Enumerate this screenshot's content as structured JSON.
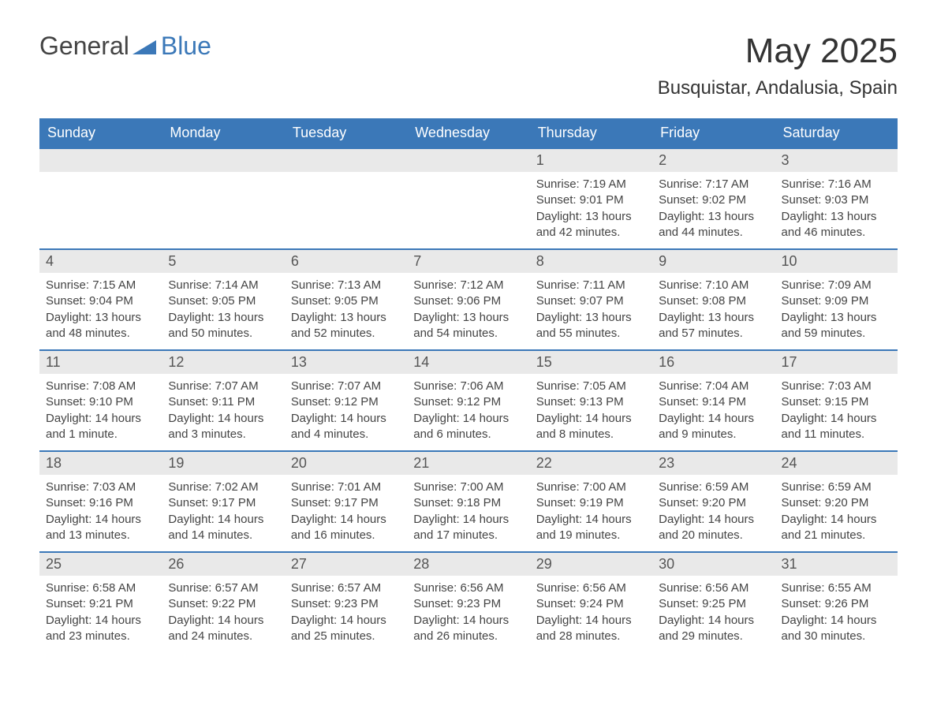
{
  "brand": {
    "general": "General",
    "blue": "Blue",
    "icon_color": "#3b78b8"
  },
  "header": {
    "month_title": "May 2025",
    "location": "Busquistar, Andalusia, Spain"
  },
  "colors": {
    "header_bg": "#3b78b8",
    "header_text": "#ffffff",
    "daynum_bg": "#e9e9e9",
    "text": "#444444",
    "row_border": "#3b78b8"
  },
  "weekdays": [
    "Sunday",
    "Monday",
    "Tuesday",
    "Wednesday",
    "Thursday",
    "Friday",
    "Saturday"
  ],
  "weeks": [
    [
      {
        "day": "",
        "sunrise": "",
        "sunset": "",
        "daylight": ""
      },
      {
        "day": "",
        "sunrise": "",
        "sunset": "",
        "daylight": ""
      },
      {
        "day": "",
        "sunrise": "",
        "sunset": "",
        "daylight": ""
      },
      {
        "day": "",
        "sunrise": "",
        "sunset": "",
        "daylight": ""
      },
      {
        "day": "1",
        "sunrise": "Sunrise: 7:19 AM",
        "sunset": "Sunset: 9:01 PM",
        "daylight": "Daylight: 13 hours and 42 minutes."
      },
      {
        "day": "2",
        "sunrise": "Sunrise: 7:17 AM",
        "sunset": "Sunset: 9:02 PM",
        "daylight": "Daylight: 13 hours and 44 minutes."
      },
      {
        "day": "3",
        "sunrise": "Sunrise: 7:16 AM",
        "sunset": "Sunset: 9:03 PM",
        "daylight": "Daylight: 13 hours and 46 minutes."
      }
    ],
    [
      {
        "day": "4",
        "sunrise": "Sunrise: 7:15 AM",
        "sunset": "Sunset: 9:04 PM",
        "daylight": "Daylight: 13 hours and 48 minutes."
      },
      {
        "day": "5",
        "sunrise": "Sunrise: 7:14 AM",
        "sunset": "Sunset: 9:05 PM",
        "daylight": "Daylight: 13 hours and 50 minutes."
      },
      {
        "day": "6",
        "sunrise": "Sunrise: 7:13 AM",
        "sunset": "Sunset: 9:05 PM",
        "daylight": "Daylight: 13 hours and 52 minutes."
      },
      {
        "day": "7",
        "sunrise": "Sunrise: 7:12 AM",
        "sunset": "Sunset: 9:06 PM",
        "daylight": "Daylight: 13 hours and 54 minutes."
      },
      {
        "day": "8",
        "sunrise": "Sunrise: 7:11 AM",
        "sunset": "Sunset: 9:07 PM",
        "daylight": "Daylight: 13 hours and 55 minutes."
      },
      {
        "day": "9",
        "sunrise": "Sunrise: 7:10 AM",
        "sunset": "Sunset: 9:08 PM",
        "daylight": "Daylight: 13 hours and 57 minutes."
      },
      {
        "day": "10",
        "sunrise": "Sunrise: 7:09 AM",
        "sunset": "Sunset: 9:09 PM",
        "daylight": "Daylight: 13 hours and 59 minutes."
      }
    ],
    [
      {
        "day": "11",
        "sunrise": "Sunrise: 7:08 AM",
        "sunset": "Sunset: 9:10 PM",
        "daylight": "Daylight: 14 hours and 1 minute."
      },
      {
        "day": "12",
        "sunrise": "Sunrise: 7:07 AM",
        "sunset": "Sunset: 9:11 PM",
        "daylight": "Daylight: 14 hours and 3 minutes."
      },
      {
        "day": "13",
        "sunrise": "Sunrise: 7:07 AM",
        "sunset": "Sunset: 9:12 PM",
        "daylight": "Daylight: 14 hours and 4 minutes."
      },
      {
        "day": "14",
        "sunrise": "Sunrise: 7:06 AM",
        "sunset": "Sunset: 9:12 PM",
        "daylight": "Daylight: 14 hours and 6 minutes."
      },
      {
        "day": "15",
        "sunrise": "Sunrise: 7:05 AM",
        "sunset": "Sunset: 9:13 PM",
        "daylight": "Daylight: 14 hours and 8 minutes."
      },
      {
        "day": "16",
        "sunrise": "Sunrise: 7:04 AM",
        "sunset": "Sunset: 9:14 PM",
        "daylight": "Daylight: 14 hours and 9 minutes."
      },
      {
        "day": "17",
        "sunrise": "Sunrise: 7:03 AM",
        "sunset": "Sunset: 9:15 PM",
        "daylight": "Daylight: 14 hours and 11 minutes."
      }
    ],
    [
      {
        "day": "18",
        "sunrise": "Sunrise: 7:03 AM",
        "sunset": "Sunset: 9:16 PM",
        "daylight": "Daylight: 14 hours and 13 minutes."
      },
      {
        "day": "19",
        "sunrise": "Sunrise: 7:02 AM",
        "sunset": "Sunset: 9:17 PM",
        "daylight": "Daylight: 14 hours and 14 minutes."
      },
      {
        "day": "20",
        "sunrise": "Sunrise: 7:01 AM",
        "sunset": "Sunset: 9:17 PM",
        "daylight": "Daylight: 14 hours and 16 minutes."
      },
      {
        "day": "21",
        "sunrise": "Sunrise: 7:00 AM",
        "sunset": "Sunset: 9:18 PM",
        "daylight": "Daylight: 14 hours and 17 minutes."
      },
      {
        "day": "22",
        "sunrise": "Sunrise: 7:00 AM",
        "sunset": "Sunset: 9:19 PM",
        "daylight": "Daylight: 14 hours and 19 minutes."
      },
      {
        "day": "23",
        "sunrise": "Sunrise: 6:59 AM",
        "sunset": "Sunset: 9:20 PM",
        "daylight": "Daylight: 14 hours and 20 minutes."
      },
      {
        "day": "24",
        "sunrise": "Sunrise: 6:59 AM",
        "sunset": "Sunset: 9:20 PM",
        "daylight": "Daylight: 14 hours and 21 minutes."
      }
    ],
    [
      {
        "day": "25",
        "sunrise": "Sunrise: 6:58 AM",
        "sunset": "Sunset: 9:21 PM",
        "daylight": "Daylight: 14 hours and 23 minutes."
      },
      {
        "day": "26",
        "sunrise": "Sunrise: 6:57 AM",
        "sunset": "Sunset: 9:22 PM",
        "daylight": "Daylight: 14 hours and 24 minutes."
      },
      {
        "day": "27",
        "sunrise": "Sunrise: 6:57 AM",
        "sunset": "Sunset: 9:23 PM",
        "daylight": "Daylight: 14 hours and 25 minutes."
      },
      {
        "day": "28",
        "sunrise": "Sunrise: 6:56 AM",
        "sunset": "Sunset: 9:23 PM",
        "daylight": "Daylight: 14 hours and 26 minutes."
      },
      {
        "day": "29",
        "sunrise": "Sunrise: 6:56 AM",
        "sunset": "Sunset: 9:24 PM",
        "daylight": "Daylight: 14 hours and 28 minutes."
      },
      {
        "day": "30",
        "sunrise": "Sunrise: 6:56 AM",
        "sunset": "Sunset: 9:25 PM",
        "daylight": "Daylight: 14 hours and 29 minutes."
      },
      {
        "day": "31",
        "sunrise": "Sunrise: 6:55 AM",
        "sunset": "Sunset: 9:26 PM",
        "daylight": "Daylight: 14 hours and 30 minutes."
      }
    ]
  ]
}
